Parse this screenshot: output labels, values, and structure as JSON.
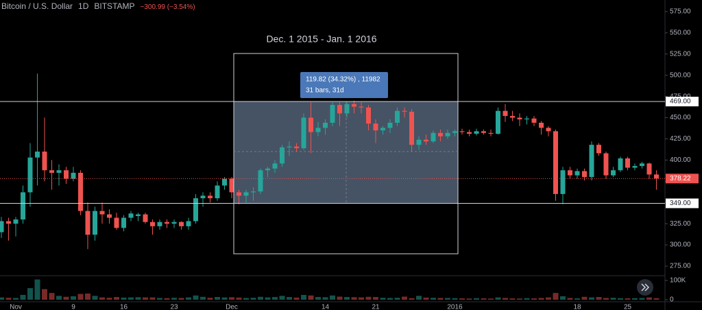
{
  "chart_data": {
    "type": "candlestick",
    "title": "Bitcoin / U.S. Dollar",
    "interval": "1D",
    "exchange": "BITSTAMP",
    "change": "−300.99 (−3.54%)",
    "range_label": "Dec. 1 2015 - Jan. 1 2016",
    "measure": [
      "119.82 (34.32%) , 11982",
      "31 bars, 31d"
    ],
    "up_color": "#26a69a",
    "down_color": "#ef5350",
    "categories": [
      null,
      null,
      "Nov",
      null,
      null,
      null,
      null,
      null,
      null,
      null,
      "9",
      null,
      null,
      null,
      null,
      null,
      null,
      "16",
      null,
      null,
      null,
      null,
      null,
      null,
      "23",
      null,
      null,
      null,
      null,
      null,
      null,
      null,
      "Dec",
      null,
      null,
      null,
      null,
      null,
      null,
      null,
      null,
      null,
      null,
      null,
      null,
      "14",
      null,
      null,
      null,
      null,
      null,
      null,
      "21",
      null,
      null,
      null,
      null,
      null,
      null,
      null,
      null,
      null,
      null,
      "2016",
      null,
      null,
      null,
      null,
      null,
      null,
      null,
      null,
      null,
      null,
      null,
      null,
      null,
      null,
      null,
      null,
      "18",
      null,
      null,
      null,
      null,
      null,
      null,
      "25",
      null,
      null,
      null,
      null
    ],
    "open": [
      315,
      328,
      325,
      330,
      362,
      403,
      410,
      388,
      385,
      388,
      378,
      385,
      340,
      312,
      340,
      336,
      332,
      320,
      332,
      334,
      336,
      327,
      322,
      327,
      325,
      327,
      322,
      328,
      355,
      358,
      355,
      370,
      378,
      362,
      358,
      362,
      363,
      388,
      390,
      396,
      415,
      416,
      414,
      450,
      433,
      438,
      444,
      465,
      455,
      466,
      463,
      462,
      443,
      435,
      438,
      444,
      458,
      457,
      418,
      424,
      422,
      432,
      428,
      432,
      434,
      433,
      431,
      434,
      432,
      431,
      458,
      452,
      450,
      448,
      449,
      444,
      438,
      434,
      360,
      388,
      382,
      387,
      380,
      418,
      408,
      382,
      388,
      402,
      391,
      393,
      396,
      383
    ],
    "high": [
      333,
      332,
      333,
      370,
      420,
      502,
      450,
      400,
      395,
      392,
      392,
      388,
      350,
      345,
      350,
      342,
      338,
      335,
      340,
      338,
      338,
      330,
      330,
      330,
      330,
      328,
      332,
      360,
      362,
      362,
      375,
      380,
      380,
      365,
      365,
      368,
      390,
      392,
      400,
      418,
      422,
      420,
      455,
      468,
      445,
      448,
      468,
      468,
      468,
      470,
      468,
      465,
      448,
      440,
      448,
      462,
      462,
      460,
      428,
      430,
      435,
      436,
      436,
      436,
      437,
      436,
      437,
      436,
      436,
      462,
      466,
      458,
      455,
      452,
      452,
      446,
      440,
      436,
      392,
      392,
      390,
      390,
      422,
      420,
      410,
      392,
      404,
      404,
      396,
      398,
      397,
      388
    ],
    "low": [
      308,
      305,
      310,
      325,
      345,
      370,
      375,
      365,
      370,
      372,
      375,
      335,
      295,
      305,
      325,
      325,
      318,
      316,
      328,
      328,
      325,
      312,
      318,
      320,
      320,
      318,
      318,
      325,
      345,
      350,
      352,
      365,
      355,
      348,
      350,
      352,
      360,
      380,
      385,
      392,
      405,
      410,
      412,
      408,
      428,
      430,
      440,
      440,
      450,
      455,
      455,
      435,
      420,
      430,
      432,
      440,
      450,
      410,
      412,
      418,
      420,
      422,
      425,
      428,
      430,
      428,
      429,
      430,
      428,
      430,
      445,
      446,
      440,
      442,
      440,
      430,
      428,
      352,
      348,
      378,
      378,
      376,
      376,
      405,
      378,
      380,
      386,
      388,
      388,
      390,
      378,
      365
    ],
    "close": [
      328,
      325,
      330,
      362,
      403,
      410,
      388,
      385,
      388,
      378,
      385,
      340,
      312,
      340,
      336,
      332,
      320,
      332,
      337,
      336,
      327,
      322,
      327,
      325,
      327,
      322,
      328,
      355,
      358,
      355,
      370,
      378,
      362,
      358,
      362,
      363,
      388,
      390,
      396,
      415,
      416,
      414,
      450,
      433,
      438,
      444,
      465,
      455,
      466,
      463,
      462,
      443,
      435,
      438,
      444,
      458,
      457,
      418,
      424,
      422,
      432,
      428,
      432,
      434,
      433,
      431,
      434,
      432,
      431,
      458,
      452,
      450,
      448,
      449,
      444,
      438,
      434,
      360,
      388,
      382,
      387,
      380,
      418,
      408,
      382,
      388,
      402,
      391,
      393,
      396,
      383,
      378.22
    ],
    "volume": [
      12000,
      10000,
      9000,
      25000,
      60000,
      105000,
      55000,
      35000,
      20000,
      15000,
      18000,
      30000,
      32000,
      20000,
      12000,
      10000,
      14000,
      11000,
      12000,
      13000,
      12000,
      12000,
      9000,
      8000,
      10000,
      9000,
      12000,
      22000,
      15000,
      10000,
      14000,
      12000,
      13000,
      11000,
      9000,
      10000,
      15000,
      12000,
      14000,
      20000,
      14000,
      11000,
      25000,
      22000,
      14000,
      13000,
      22000,
      16000,
      14000,
      13000,
      12000,
      15000,
      14000,
      10000,
      9000,
      10000,
      16000,
      8000,
      20000,
      11000,
      10000,
      9000,
      9000,
      8000,
      7000,
      6000,
      8000,
      7000,
      6000,
      12000,
      9000,
      7000,
      6000,
      8000,
      7000,
      9000,
      12000,
      35000,
      18000,
      9000,
      7000,
      15000,
      12000,
      14000,
      9000,
      10000,
      8000,
      7000,
      8000,
      9000,
      12000,
      8000
    ],
    "ylim": [
      265.3,
      588.7
    ],
    "yticks": [
      {
        "value": 275,
        "label": "275.00"
      },
      {
        "value": 300,
        "label": "300.00"
      },
      {
        "value": 325,
        "label": "325.00"
      },
      {
        "value": 350,
        "label": "350.00"
      },
      {
        "value": 375,
        "label": "375.00"
      },
      {
        "value": 400,
        "label": "400.00"
      },
      {
        "value": 425,
        "label": "425.00"
      },
      {
        "value": 450,
        "label": "450.00"
      },
      {
        "value": 475,
        "label": "475.00"
      },
      {
        "value": 500,
        "label": "500.00"
      },
      {
        "value": 525,
        "label": "525.00"
      },
      {
        "value": 550,
        "label": "550.00"
      },
      {
        "value": 575,
        "label": "575.00"
      }
    ],
    "volume_ylim": [
      0,
      121000
    ],
    "volume_yticks": [
      0,
      {
        "value": 100000,
        "label": "100K"
      }
    ],
    "levels": [
      {
        "value": 469,
        "label": "469.00"
      },
      {
        "value": 349,
        "label": "349.00"
      }
    ],
    "last": {
      "value": 378.22,
      "label": "378.22"
    }
  }
}
